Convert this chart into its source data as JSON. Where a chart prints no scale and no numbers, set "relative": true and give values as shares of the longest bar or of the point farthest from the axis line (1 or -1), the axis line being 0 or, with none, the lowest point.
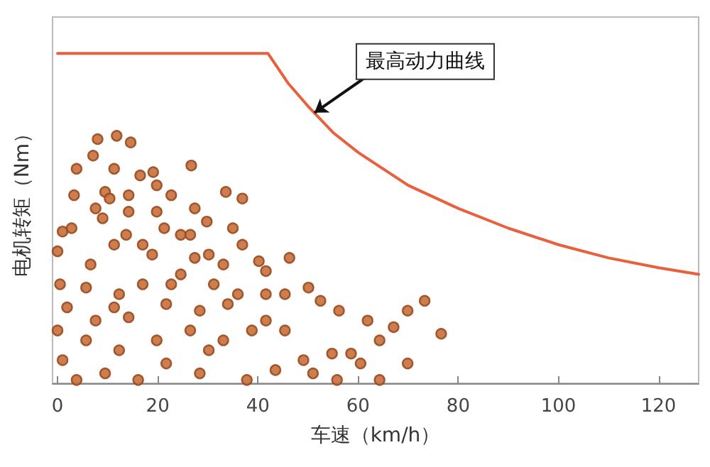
{
  "chart_data": {
    "type": "scatter",
    "xlabel": "车速（km/h）",
    "ylabel": "电机转矩（Nm）",
    "relative": true,
    "xlim": [
      -1,
      128
    ],
    "xticks": [
      0,
      20,
      40,
      60,
      80,
      100,
      120
    ],
    "grid": false,
    "annotations": [
      {
        "text": "最高动力曲线",
        "x": 51.3,
        "y": 0.82
      }
    ],
    "series": [
      {
        "type": "line",
        "color": "#e8603c",
        "marker": "none",
        "line_style": "solid",
        "x": [
          0,
          42,
          46,
          50,
          55,
          60,
          65,
          70,
          80,
          90,
          100,
          110,
          120,
          128
        ],
        "values": [
          1,
          1,
          0.91,
          0.84,
          0.76,
          0.7,
          0.65,
          0.6,
          0.53,
          0.47,
          0.42,
          0.38,
          0.35,
          0.33
        ]
      },
      {
        "type": "scatter",
        "color": "#c8703c",
        "marker": "circle",
        "x": [
          8,
          11.8,
          14.6,
          7.1,
          3.8,
          11.3,
          16.5,
          19.1,
          26.7,
          33.6,
          36.9,
          3.3,
          9.5,
          14.2,
          19.8,
          22.7,
          27.4,
          9,
          14.2,
          21.3,
          1,
          2.8,
          24.6,
          26.5,
          29.8,
          35,
          36.9,
          13.7,
          40.2,
          46.3,
          0,
          11.3,
          18.9,
          27.4,
          6.6,
          41.6,
          50.1,
          52.5,
          56.2,
          73.3,
          69.9,
          76.6,
          61.9,
          67.1,
          69.9,
          64.3,
          58.6,
          55.8,
          49.1,
          45.4,
          41.6,
          36,
          31.2,
          24.6,
          17,
          12.3,
          5.7,
          1.9,
          7.6,
          14.2,
          21.7,
          28.4,
          34,
          38.8,
          33.1,
          26.5,
          19.8,
          12.3,
          5.7,
          1,
          3.8,
          9.5,
          16.1,
          21.7,
          28.4,
          37.8,
          43.5,
          51,
          64.3,
          0,
          0.5,
          22.7,
          30.2,
          45.4,
          19.8,
          10.4,
          7.6,
          17,
          33.1,
          41.6,
          30.2,
          11.3,
          54.8,
          60.5
        ],
        "values": [
          0.74,
          0.75,
          0.73,
          0.69,
          0.65,
          0.65,
          0.63,
          0.64,
          0.66,
          0.58,
          0.56,
          0.57,
          0.58,
          0.57,
          0.6,
          0.57,
          0.53,
          0.5,
          0.52,
          0.47,
          0.46,
          0.47,
          0.45,
          0.45,
          0.49,
          0.47,
          0.42,
          0.45,
          0.37,
          0.38,
          0.4,
          0.42,
          0.39,
          0.38,
          0.36,
          0.34,
          0.29,
          0.25,
          0.22,
          0.25,
          0.22,
          0.15,
          0.19,
          0.17,
          0.06,
          0.13,
          0.09,
          0.01,
          0.07,
          0.16,
          0.19,
          0.27,
          0.3,
          0.33,
          0.3,
          0.27,
          0.29,
          0.23,
          0.19,
          0.2,
          0.24,
          0.22,
          0.24,
          0.16,
          0.13,
          0.16,
          0.13,
          0.1,
          0.13,
          0.07,
          0.01,
          0.03,
          0.01,
          0.06,
          0.03,
          0.01,
          0.04,
          0.03,
          0.01,
          0.16,
          0.3,
          0.3,
          0.39,
          0.27,
          0.52,
          0.56,
          0.53,
          0.42,
          0.36,
          0.27,
          0.1,
          0.23,
          0.09,
          0.06
        ]
      }
    ]
  }
}
